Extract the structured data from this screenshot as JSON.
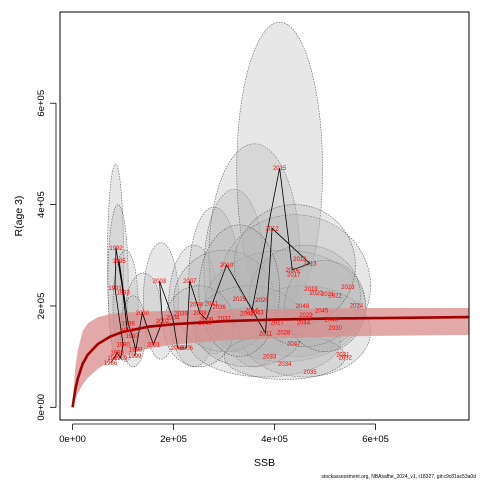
{
  "chart_data": {
    "type": "scatter",
    "title": "",
    "xlabel": "SSB",
    "ylabel": "R(age 3)",
    "xlim": [
      -25000,
      785000
    ],
    "ylim": [
      -25000,
      780000
    ],
    "x_ticks": [
      0,
      200000,
      400000,
      600000
    ],
    "x_tick_labels": [
      "0e+00",
      "2e+05",
      "4e+05",
      "6e+05"
    ],
    "y_ticks": [
      0,
      200000,
      400000,
      600000
    ],
    "y_tick_labels": [
      "0e+00",
      "2e+05",
      "4e+05",
      "6e+05"
    ],
    "source_note": "stockassessment.org, NBAsafhe_2024_v1, r18327, git:c9c81ac53a0d",
    "colors": {
      "stock_recruit_curve": "#a00000",
      "confidence_band": "#d98c8c",
      "ellipse_fill": "#b4b4b4",
      "ellipse_stroke": "#5a5a5a",
      "year_label": "#ff0000",
      "connecting_line": "#000000"
    },
    "stock_recruit_curve": {
      "x": [
        0,
        5000,
        10000,
        20000,
        30000,
        50000,
        75000,
        100000,
        150000,
        200000,
        300000,
        400000,
        500000,
        600000,
        700000,
        785000
      ],
      "y": [
        0,
        33000,
        56000,
        86000,
        104000,
        125000,
        140000,
        149000,
        159000,
        164000,
        170000,
        173000,
        175000,
        176000,
        177000,
        178000
      ],
      "band_low": [
        0,
        15000,
        27000,
        45000,
        58000,
        76000,
        92000,
        102000,
        116000,
        124000,
        132000,
        136000,
        139000,
        141000,
        142000,
        143000
      ],
      "band_high": [
        0,
        75000,
        112000,
        150000,
        166000,
        178000,
        184000,
        187000,
        189000,
        191000,
        193000,
        194000,
        195000,
        196000,
        196000,
        196000
      ]
    },
    "points": [
      {
        "year": "1986",
        "x": 75000,
        "y": 87000
      },
      {
        "year": "1987",
        "x": 82000,
        "y": 97000
      },
      {
        "year": "1988",
        "x": 88000,
        "y": 108000
      },
      {
        "year": "1989",
        "x": 95000,
        "y": 97000
      },
      {
        "year": "1990",
        "x": 100000,
        "y": 124000
      },
      {
        "year": "1991",
        "x": 84000,
        "y": 235000
      },
      {
        "year": "1992",
        "x": 86000,
        "y": 314000
      },
      {
        "year": "1993",
        "x": 100000,
        "y": 227000
      },
      {
        "year": "1994",
        "x": 108000,
        "y": 153000
      },
      {
        "year": "1995",
        "x": 92000,
        "y": 289000
      },
      {
        "year": "1996",
        "x": 110000,
        "y": 165000
      },
      {
        "year": "1997",
        "x": 118000,
        "y": 141000
      },
      {
        "year": "1998",
        "x": 125000,
        "y": 114000
      },
      {
        "year": "1999",
        "x": 123000,
        "y": 101000
      },
      {
        "year": "2000",
        "x": 138000,
        "y": 186000
      },
      {
        "year": "2001",
        "x": 160000,
        "y": 124000
      },
      {
        "year": "2002",
        "x": 178000,
        "y": 170000
      },
      {
        "year": "2003",
        "x": 172000,
        "y": 249000
      },
      {
        "year": "2004",
        "x": 198000,
        "y": 177000
      },
      {
        "year": "2005",
        "x": 208000,
        "y": 117000
      },
      {
        "year": "2006",
        "x": 225000,
        "y": 117000
      },
      {
        "year": "2007",
        "x": 232000,
        "y": 249000
      },
      {
        "year": "2008",
        "x": 252000,
        "y": 186000
      },
      {
        "year": "2009",
        "x": 265000,
        "y": 173000
      },
      {
        "year": "2010",
        "x": 305000,
        "y": 281000
      },
      {
        "year": "2011",
        "x": 382000,
        "y": 146000
      },
      {
        "year": "2012",
        "x": 395000,
        "y": 353000
      },
      {
        "year": "2013",
        "x": 470000,
        "y": 284000
      },
      {
        "year": "2014",
        "x": 435000,
        "y": 271000
      },
      {
        "year": "2015",
        "x": 410000,
        "y": 472000
      },
      {
        "year": "2016",
        "x": 355000,
        "y": 191000
      }
    ],
    "extra_labels": [
      {
        "year": "2017",
        "x": 438000,
        "y": 262000
      },
      {
        "year": "2018",
        "x": 450000,
        "y": 293000
      },
      {
        "year": "2019",
        "x": 472000,
        "y": 233000
      },
      {
        "year": "2020",
        "x": 482000,
        "y": 226000
      },
      {
        "year": "2021",
        "x": 505000,
        "y": 224000
      },
      {
        "year": "2022",
        "x": 520000,
        "y": 221000
      },
      {
        "year": "2023",
        "x": 545000,
        "y": 237000
      },
      {
        "year": "2024",
        "x": 562000,
        "y": 201000
      },
      {
        "year": "2025",
        "x": 330000,
        "y": 214000
      },
      {
        "year": "2026",
        "x": 375000,
        "y": 212000
      },
      {
        "year": "2027",
        "x": 405000,
        "y": 167000
      },
      {
        "year": "2028",
        "x": 418000,
        "y": 148000
      },
      {
        "year": "2029",
        "x": 462000,
        "y": 182000
      },
      {
        "year": "2030",
        "x": 520000,
        "y": 157000
      },
      {
        "year": "2031",
        "x": 535000,
        "y": 104000
      },
      {
        "year": "2032",
        "x": 540000,
        "y": 98000
      },
      {
        "year": "2033",
        "x": 390000,
        "y": 100000
      },
      {
        "year": "2034",
        "x": 420000,
        "y": 85000
      },
      {
        "year": "2035",
        "x": 470000,
        "y": 70000
      },
      {
        "year": "2036",
        "x": 290000,
        "y": 198000
      },
      {
        "year": "2037",
        "x": 300000,
        "y": 175000
      },
      {
        "year": "2038",
        "x": 245000,
        "y": 203000
      },
      {
        "year": "2039",
        "x": 215000,
        "y": 185000
      },
      {
        "year": "2040",
        "x": 262000,
        "y": 166000
      },
      {
        "year": "2041",
        "x": 275000,
        "y": 205000
      },
      {
        "year": "2042",
        "x": 345000,
        "y": 185000
      },
      {
        "year": "2043",
        "x": 365000,
        "y": 187000
      },
      {
        "year": "2044",
        "x": 457000,
        "y": 167000
      },
      {
        "year": "2045",
        "x": 493000,
        "y": 191000
      },
      {
        "year": "2046",
        "x": 512000,
        "y": 173000
      },
      {
        "year": "2047",
        "x": 438000,
        "y": 126000
      },
      {
        "year": "2048",
        "x": 455000,
        "y": 200000
      }
    ],
    "ellipses": [
      {
        "cx": 85000,
        "cy": 290000,
        "rx": 16000,
        "ry": 190000
      },
      {
        "cx": 90000,
        "cy": 250000,
        "rx": 20000,
        "ry": 150000
      },
      {
        "cx": 105000,
        "cy": 200000,
        "rx": 25000,
        "ry": 110000
      },
      {
        "cx": 140000,
        "cy": 190000,
        "rx": 35000,
        "ry": 75000
      },
      {
        "cx": 175000,
        "cy": 210000,
        "rx": 35000,
        "ry": 115000
      },
      {
        "cx": 240000,
        "cy": 200000,
        "rx": 50000,
        "ry": 120000
      },
      {
        "cx": 280000,
        "cy": 250000,
        "rx": 50000,
        "ry": 145000
      },
      {
        "cx": 320000,
        "cy": 270000,
        "rx": 60000,
        "ry": 160000
      },
      {
        "cx": 360000,
        "cy": 300000,
        "rx": 90000,
        "ry": 220000
      },
      {
        "cx": 410000,
        "cy": 470000,
        "rx": 85000,
        "ry": 290000
      },
      {
        "cx": 440000,
        "cy": 240000,
        "rx": 150000,
        "ry": 140000
      },
      {
        "cx": 420000,
        "cy": 200000,
        "rx": 160000,
        "ry": 110000
      },
      {
        "cx": 380000,
        "cy": 130000,
        "rx": 150000,
        "ry": 70000
      },
      {
        "cx": 460000,
        "cy": 150000,
        "rx": 130000,
        "ry": 90000
      },
      {
        "cx": 300000,
        "cy": 210000,
        "rx": 100000,
        "ry": 100000
      },
      {
        "cx": 350000,
        "cy": 160000,
        "rx": 110000,
        "ry": 80000
      },
      {
        "cx": 420000,
        "cy": 100000,
        "rx": 120000,
        "ry": 45000
      },
      {
        "cx": 460000,
        "cy": 220000,
        "rx": 110000,
        "ry": 100000
      },
      {
        "cx": 500000,
        "cy": 200000,
        "rx": 80000,
        "ry": 90000
      },
      {
        "cx": 250000,
        "cy": 160000,
        "rx": 70000,
        "ry": 80000
      },
      {
        "cx": 120000,
        "cy": 150000,
        "rx": 25000,
        "ry": 70000
      },
      {
        "cx": 440000,
        "cy": 280000,
        "rx": 120000,
        "ry": 120000
      },
      {
        "cx": 330000,
        "cy": 230000,
        "rx": 80000,
        "ry": 130000
      }
    ]
  }
}
